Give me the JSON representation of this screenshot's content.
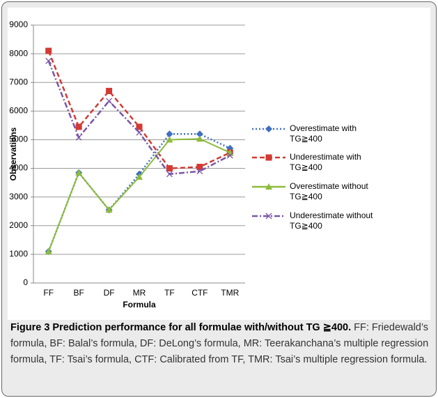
{
  "chart_data": {
    "type": "line",
    "x_label": "Formula",
    "y_label": "Observations",
    "categories": [
      "FF",
      "BF",
      "DF",
      "MR",
      "TF",
      "CTF",
      "TMR"
    ],
    "ylim": [
      0,
      9000
    ],
    "yticks": [
      0,
      1000,
      2000,
      3000,
      4000,
      5000,
      6000,
      7000,
      8000,
      9000
    ],
    "grid": true,
    "series": [
      {
        "name": "Overestimate with TG≧400",
        "color": "#3f6fc4",
        "marker": "diamond",
        "line_style": "dotted",
        "values": [
          1100,
          3850,
          2550,
          3800,
          5200,
          5200,
          4700
        ]
      },
      {
        "name": "Underestimate with TG≧400",
        "color": "#d23a33",
        "marker": "square",
        "line_style": "dashed",
        "values": [
          8100,
          5450,
          6700,
          5450,
          4000,
          4050,
          4550
        ]
      },
      {
        "name": "Overestimate without TG≧400",
        "color": "#8dbb3a",
        "marker": "triangle",
        "line_style": "solid",
        "values": [
          1100,
          3850,
          2550,
          3700,
          5000,
          5030,
          4550
        ]
      },
      {
        "name": "Underestimate without TG≧400",
        "color": "#7a55a6",
        "marker": "x",
        "line_style": "dashdot",
        "values": [
          7750,
          5080,
          6350,
          5250,
          3800,
          3900,
          4450
        ]
      }
    ]
  },
  "caption": {
    "title": "Figure 3 Prediction performance for all formulae with/without TG ≧400.",
    "text": "FF: Friedewald’s formula, BF: Balal’s formula, DF: DeLong’s formula, MR: Teerakanchana’s multiple regression formula, TF: Tsai’s formula, CTF: Calibrated from TF, TMR: Tsai’s multiple regression formula."
  }
}
